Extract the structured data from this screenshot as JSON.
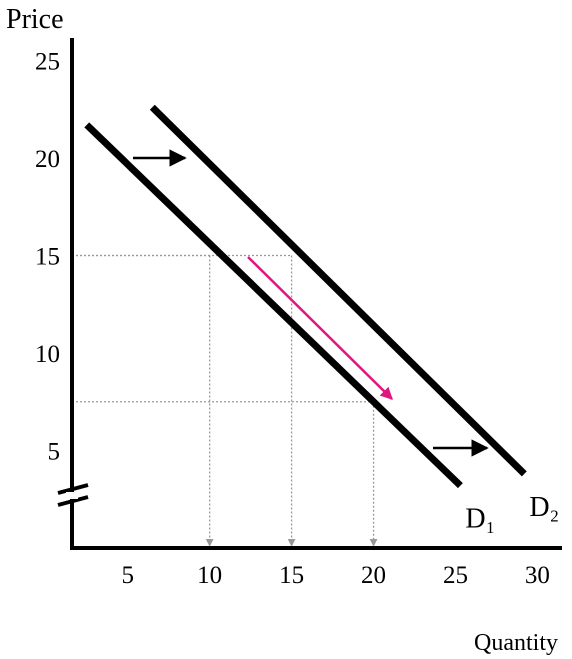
{
  "chart_data": {
    "type": "line",
    "y_label": "Price",
    "x_label": "Quantity",
    "series": [
      {
        "name": "D₁",
        "color": "#000000",
        "x": [
          2.5,
          25.3
        ],
        "values": [
          21.7,
          3.2
        ]
      },
      {
        "name": "D₂",
        "color": "#000000",
        "x": [
          6.5,
          29.2
        ],
        "values": [
          22.6,
          3.8
        ]
      }
    ],
    "guides": [
      {
        "x": 10,
        "y": 15
      },
      {
        "x": 15,
        "y": 15
      },
      {
        "x": 20,
        "y": 7.5
      }
    ],
    "xlim": [
      1.6,
      31.5
    ],
    "ylim": [
      0,
      26.5
    ],
    "xticks": [
      5,
      10,
      15,
      20,
      25,
      30
    ],
    "yticks": [
      5,
      10,
      15,
      20,
      25
    ]
  }
}
